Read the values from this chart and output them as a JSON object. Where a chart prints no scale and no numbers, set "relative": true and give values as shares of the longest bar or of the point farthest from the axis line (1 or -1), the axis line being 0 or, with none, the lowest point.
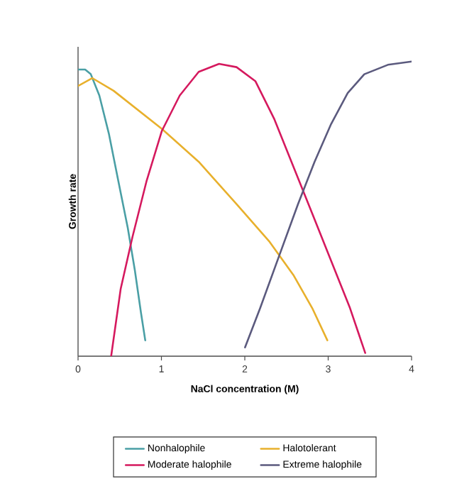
{
  "chart_data": {
    "type": "line",
    "relative": true,
    "xlabel": "NaCl concentration (M)",
    "ylabel": "Growth rate",
    "xlim": [
      0,
      4
    ],
    "xticks": [
      0,
      1,
      2,
      3,
      4
    ],
    "legend": "bottom",
    "grid": false,
    "marker": "none",
    "line_style": "solid",
    "series": [
      {
        "name": "Nonhalophile",
        "color": "#4a9fa5",
        "x": [
          0,
          0.085,
          0.153,
          0.255,
          0.369,
          0.482,
          0.596,
          0.681,
          0.755,
          0.806
        ],
        "values": [
          0.973,
          0.973,
          0.957,
          0.885,
          0.756,
          0.596,
          0.436,
          0.292,
          0.147,
          0.054
        ]
      },
      {
        "name": "Halotolerant",
        "color": "#e8b02c",
        "x": [
          0,
          0.17,
          0.426,
          1.004,
          1.447,
          1.901,
          2.298,
          2.582,
          2.809,
          2.99
        ],
        "values": [
          0.917,
          0.944,
          0.901,
          0.772,
          0.66,
          0.516,
          0.388,
          0.276,
          0.163,
          0.054
        ]
      },
      {
        "name": "Moderate halophile",
        "color": "#d5195e",
        "x": [
          0.397,
          0.511,
          0.652,
          0.823,
          1.004,
          1.22,
          1.447,
          1.691,
          1.901,
          2.128,
          2.355,
          2.582,
          2.809,
          3.035,
          3.262,
          3.444
        ],
        "values": [
          0,
          0.228,
          0.404,
          0.596,
          0.764,
          0.885,
          0.965,
          0.992,
          0.981,
          0.933,
          0.804,
          0.644,
          0.484,
          0.324,
          0.163,
          0.011
        ]
      },
      {
        "name": "Extreme halophile",
        "color": "#5b5a7e",
        "x": [
          2.003,
          2.184,
          2.411,
          2.638,
          2.837,
          3.035,
          3.234,
          3.433,
          3.716,
          4.0
        ],
        "values": [
          0.03,
          0.163,
          0.34,
          0.516,
          0.66,
          0.788,
          0.893,
          0.957,
          0.989,
          1.0
        ]
      }
    ]
  }
}
